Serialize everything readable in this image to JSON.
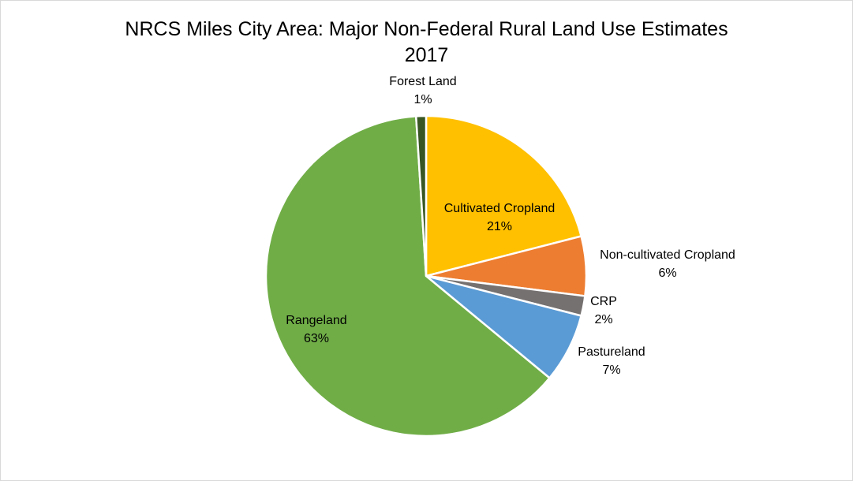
{
  "chart_data": {
    "type": "pie",
    "title": "NRCS Miles City Area: Major Non-Federal Rural Land Use Estimates",
    "subtitle": "2017",
    "legend": "none (data labels on slices)",
    "slices": [
      {
        "label": "Cultivated Cropland",
        "value": 21,
        "value_label": "21%",
        "color": "#ffc000"
      },
      {
        "label": "Non-cultivated Cropland",
        "value": 6,
        "value_label": "6%",
        "color": "#ed7d31"
      },
      {
        "label": "CRP",
        "value": 2,
        "value_label": "2%",
        "color": "#767171"
      },
      {
        "label": "Pastureland",
        "value": 7,
        "value_label": "7%",
        "color": "#5b9bd5"
      },
      {
        "label": "Rangeland",
        "value": 63,
        "value_label": "63%",
        "color": "#70ad47"
      },
      {
        "label": "Forest Land",
        "value": 1,
        "value_label": "1%",
        "color": "#375623"
      }
    ]
  }
}
